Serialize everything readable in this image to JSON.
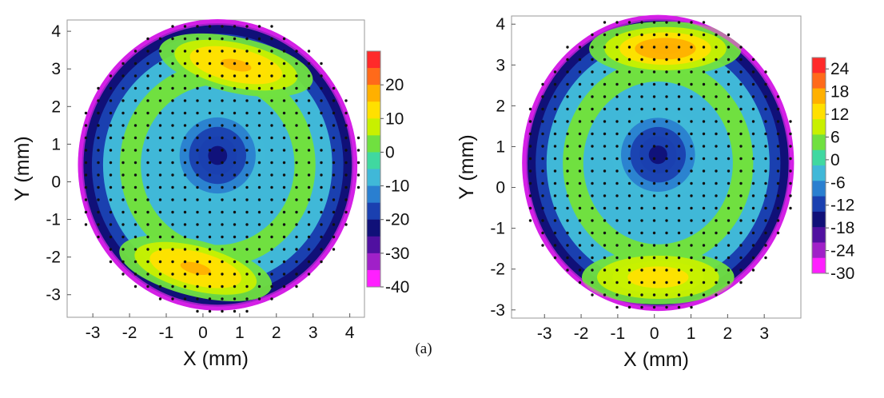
{
  "chart_data": [
    {
      "type": "heatmap",
      "title": "",
      "xlabel": "X (mm)",
      "ylabel": "Y (mm)",
      "xlim": [
        -3.7,
        4.4
      ],
      "ylim": [
        -3.6,
        4.3
      ],
      "xticks": [
        -3,
        -2,
        -1,
        0,
        1,
        2,
        3,
        4
      ],
      "yticks": [
        -3,
        -2,
        -1,
        0,
        1,
        2,
        3,
        4
      ],
      "colorbar": {
        "range": [
          -40,
          30
        ],
        "ticks": [
          20,
          10,
          0,
          -10,
          -20,
          -30,
          -40
        ],
        "colors": [
          "#ff2a2a",
          "#ff6a1a",
          "#ffb000",
          "#ffe000",
          "#c8f000",
          "#70e040",
          "#40d8a0",
          "#40b8d8",
          "#2a7fd0",
          "#1a40b0",
          "#101078",
          "#5010a0",
          "#a020c8",
          "#ff20ff"
        ]
      },
      "features": [
        {
          "kind": "low",
          "x": 0.4,
          "y": 0.7,
          "value": -25
        },
        {
          "kind": "high",
          "x": 0.9,
          "y": 3.1,
          "value": 22
        },
        {
          "kind": "high",
          "x": -0.2,
          "y": -2.3,
          "value": 22
        }
      ]
    },
    {
      "type": "heatmap",
      "title": "",
      "xlabel": "X (mm)",
      "ylabel": "Y (mm)",
      "xlim": [
        -3.9,
        4.0
      ],
      "ylim": [
        -3.2,
        4.2
      ],
      "xticks": [
        -3,
        -2,
        -1,
        0,
        1,
        2,
        3
      ],
      "yticks": [
        -3,
        -2,
        -1,
        0,
        1,
        2,
        3,
        4
      ],
      "colorbar": {
        "range": [
          -30,
          27
        ],
        "ticks": [
          24,
          18,
          12,
          6,
          0,
          -6,
          -12,
          -18,
          -24,
          -30
        ],
        "colors": [
          "#ff2a2a",
          "#ff6a1a",
          "#ffb000",
          "#ffe000",
          "#c8f000",
          "#70e040",
          "#40d8a0",
          "#40b8d8",
          "#2a7fd0",
          "#1a40b0",
          "#101078",
          "#5010a0",
          "#a020c8",
          "#ff20ff"
        ]
      },
      "features": [
        {
          "kind": "low",
          "x": 0.1,
          "y": 0.8,
          "value": -18
        },
        {
          "kind": "high",
          "x": 0.3,
          "y": 3.4,
          "value": 21
        },
        {
          "kind": "high",
          "x": 0.1,
          "y": -2.2,
          "value": 15
        }
      ]
    }
  ],
  "caption": "(a)"
}
